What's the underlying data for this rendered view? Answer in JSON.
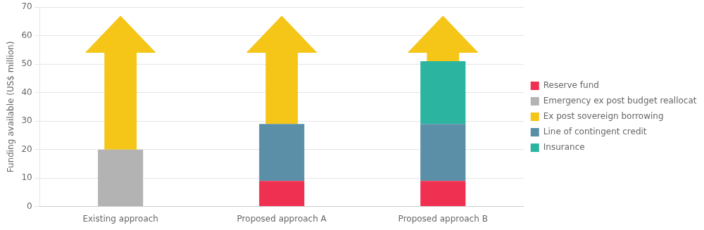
{
  "chart_data": {
    "type": "bar",
    "stacked": true,
    "categories": [
      "Existing approach",
      "Proposed approach A",
      "Proposed approach B"
    ],
    "ylabel": "Funding available (US$ million)",
    "ylim": [
      0,
      70
    ],
    "yticks": [
      0,
      10,
      20,
      30,
      40,
      50,
      60,
      70
    ],
    "grid": true,
    "legend": "right",
    "series": [
      {
        "name": "Reserve fund",
        "color": "#f03050",
        "values": [
          0,
          9,
          9
        ]
      },
      {
        "name": "Emergency ex post budget reallocation",
        "color": "#b3b3b3",
        "values": [
          20,
          0,
          0
        ]
      },
      {
        "name": "Ex post sovereign borrowing",
        "color": "#f5c518",
        "type": "arrow",
        "base": [
          20,
          29,
          51
        ],
        "head_base": [
          54,
          54,
          54
        ],
        "values": [
          67,
          67,
          67
        ]
      },
      {
        "name": "Line of contingent credit",
        "color": "#5b8fa8",
        "values": [
          0,
          20,
          20
        ]
      },
      {
        "name": "Insurance",
        "color": "#2bb5a0",
        "values": [
          0,
          0,
          22
        ]
      }
    ]
  }
}
